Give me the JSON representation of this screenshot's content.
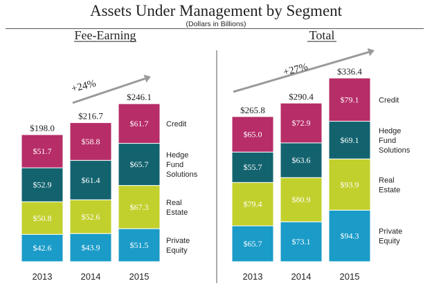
{
  "title": "Assets Under Management by Segment",
  "subtitle": "(Dollars in Billions)",
  "colors": {
    "Private Equity": "#1b9bc8",
    "Real Estate": "#c2d02d",
    "Hedge Fund Solutions": "#13636f",
    "Credit": "#b62d67"
  },
  "chart_data": [
    {
      "type": "bar",
      "stacked": true,
      "title": "Fee-Earning",
      "categories": [
        "2013",
        "2014",
        "2015"
      ],
      "series": [
        {
          "name": "Private Equity",
          "label_lines": [
            "Private",
            "Equity"
          ],
          "values": [
            42.6,
            43.9,
            51.5
          ],
          "labels": [
            "$42.6",
            "$43.9",
            "$51.5"
          ]
        },
        {
          "name": "Real Estate",
          "label_lines": [
            "Real",
            "Estate"
          ],
          "values": [
            50.8,
            52.6,
            67.3
          ],
          "labels": [
            "$50.8",
            "$52.6",
            "$67.3"
          ]
        },
        {
          "name": "Hedge Fund Solutions",
          "label_lines": [
            "Hedge",
            "Fund",
            "Solutions"
          ],
          "values": [
            52.9,
            61.4,
            65.7
          ],
          "labels": [
            "$52.9",
            "$61.4",
            "$65.7"
          ]
        },
        {
          "name": "Credit",
          "label_lines": [
            "Credit"
          ],
          "values": [
            51.7,
            58.8,
            61.7
          ],
          "labels": [
            "$51.7",
            "$58.8",
            "$61.7"
          ]
        }
      ],
      "totals": [
        198.0,
        216.7,
        246.1
      ],
      "total_labels": [
        "$198.0",
        "$216.7",
        "$246.1"
      ],
      "growth": "+24%"
    },
    {
      "type": "bar",
      "stacked": true,
      "title": "Total",
      "categories": [
        "2013",
        "2014",
        "2015"
      ],
      "series": [
        {
          "name": "Private Equity",
          "label_lines": [
            "Private",
            "Equity"
          ],
          "values": [
            65.7,
            73.1,
            94.3
          ],
          "labels": [
            "$65.7",
            "$73.1",
            "$94.3"
          ]
        },
        {
          "name": "Real Estate",
          "label_lines": [
            "Real",
            "Estate"
          ],
          "values": [
            79.4,
            80.9,
            93.9
          ],
          "labels": [
            "$79.4",
            "$80.9",
            "$93.9"
          ]
        },
        {
          "name": "Hedge Fund Solutions",
          "label_lines": [
            "Hedge",
            "Fund",
            "Solutions"
          ],
          "values": [
            55.7,
            63.6,
            69.1
          ],
          "labels": [
            "$55.7",
            "$63.6",
            "$69.1"
          ]
        },
        {
          "name": "Credit",
          "label_lines": [
            "Credit"
          ],
          "values": [
            65.0,
            72.9,
            79.1
          ],
          "labels": [
            "$65.0",
            "$72.9",
            "$79.1"
          ]
        }
      ],
      "totals": [
        265.8,
        290.4,
        336.4
      ],
      "total_labels": [
        "$265.8",
        "$290.4",
        "$336.4"
      ],
      "growth": "+27%"
    }
  ]
}
